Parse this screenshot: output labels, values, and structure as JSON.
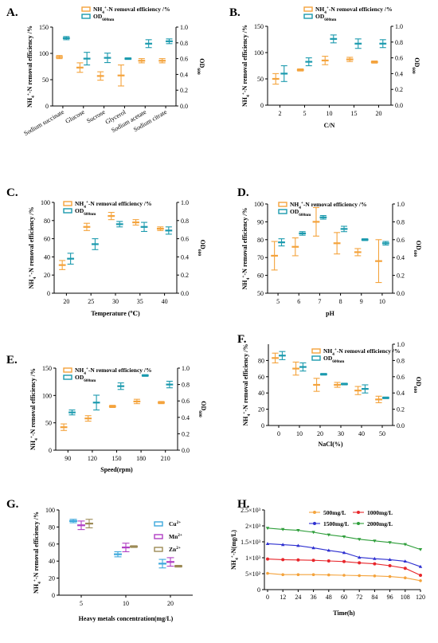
{
  "colors": {
    "removal": "#F4A33C",
    "od": "#1B9AAE",
    "cu": "#3DA8DC",
    "mn": "#B13FC4",
    "zn": "#9C8A55",
    "c500": "#F4A33C",
    "c1000": "#E8262B",
    "c1500": "#2D2FD0",
    "c2000": "#2E9E3A"
  },
  "chart_data": [
    {
      "panel": "A.",
      "type": "scatter",
      "categories": [
        "Sodium succinate",
        "Glucose",
        "Sucrose",
        "Glycerol",
        "Sodium acetate",
        "Sodium citrate"
      ],
      "ylabel": "NH4+-N removal efficiency /%",
      "y2label": "OD600",
      "ylim": [
        0,
        150
      ],
      "yticks": [
        0,
        50,
        100,
        150
      ],
      "y2lim": [
        0,
        1.0
      ],
      "y2ticks": [
        "0.0",
        "0.2",
        "0.4",
        "0.6",
        "0.8",
        "1.0"
      ],
      "legend": [
        "NH4+-N removal efficiency /%",
        "OD600nm"
      ],
      "series": [
        {
          "name": "NH4+-N removal efficiency /%",
          "axis": "left",
          "values": [
            93,
            73,
            57,
            58,
            86,
            86
          ],
          "errors": [
            3,
            9,
            8,
            20,
            4,
            4
          ]
        },
        {
          "name": "OD600nm",
          "axis": "right",
          "values": [
            0.86,
            0.6,
            0.61,
            0.6,
            0.79,
            0.82
          ],
          "errors": [
            0.02,
            0.08,
            0.06,
            0.01,
            0.05,
            0.03
          ]
        }
      ]
    },
    {
      "panel": "B.",
      "type": "scatter",
      "categories": [
        "2",
        "5",
        "10",
        "15",
        "20"
      ],
      "xlabel": "C/N",
      "ylabel": "NH4+-N removal efficiency /%",
      "y2label": "OD600",
      "ylim": [
        0,
        150
      ],
      "yticks": [
        0,
        50,
        100,
        150
      ],
      "y2lim": [
        0,
        1.0
      ],
      "y2ticks": [
        "0.0",
        "0.2",
        "0.4",
        "0.6",
        "0.8",
        "1.0"
      ],
      "legend": [
        "NH4+-N removal efficiency /%",
        "OD600nm"
      ],
      "series": [
        {
          "name": "NH4+-N removal efficiency /%",
          "axis": "left",
          "values": [
            50,
            67,
            85,
            87,
            82
          ],
          "errors": [
            10,
            2,
            8,
            4,
            2
          ]
        },
        {
          "name": "OD600nm",
          "axis": "right",
          "values": [
            0.4,
            0.55,
            0.84,
            0.78,
            0.78
          ],
          "errors": [
            0.1,
            0.05,
            0.05,
            0.06,
            0.05
          ]
        }
      ]
    },
    {
      "panel": "C.",
      "type": "scatter",
      "categories": [
        "20",
        "25",
        "30",
        "35",
        "40"
      ],
      "xlabel": "Temperature (℃)",
      "ylabel": "NH4+-N removal efficiency /%",
      "y2label": "OD600",
      "ylim": [
        0,
        100
      ],
      "yticks": [
        0,
        20,
        40,
        60,
        80,
        100
      ],
      "y2lim": [
        0,
        1.0
      ],
      "y2ticks": [
        "0.0",
        "0.2",
        "0.4",
        "0.6",
        "0.8",
        "1.0"
      ],
      "legend": [
        "NH4+-N removal efficiency /%",
        "OD600nm"
      ],
      "series": [
        {
          "name": "NH4+-N removal efficiency /%",
          "axis": "left",
          "values": [
            31,
            73,
            85,
            78,
            71
          ],
          "errors": [
            5,
            4,
            4,
            3,
            2
          ]
        },
        {
          "name": "OD600nm",
          "axis": "right",
          "values": [
            0.38,
            0.54,
            0.76,
            0.73,
            0.69
          ],
          "errors": [
            0.06,
            0.06,
            0.03,
            0.05,
            0.04
          ]
        }
      ]
    },
    {
      "panel": "D.",
      "type": "scatter",
      "categories": [
        "5",
        "6",
        "7",
        "8",
        "9",
        "10"
      ],
      "xlabel": "pH",
      "ylabel": "NH4+-N removal efficiency /%",
      "y2label": "OD600",
      "ylim": [
        50,
        100
      ],
      "yticks": [
        50,
        60,
        70,
        80,
        90,
        100
      ],
      "y2lim": [
        0,
        1.0
      ],
      "y2ticks": [
        "0.0",
        "0.2",
        "0.4",
        "0.6",
        "0.8",
        "1.0"
      ],
      "legend": [
        "NH4+-N removal efficiency /%",
        "OD600nm"
      ],
      "series": [
        {
          "name": "NH4+-N removal efficiency /%",
          "axis": "left",
          "values": [
            71,
            76,
            90,
            78,
            73,
            68
          ],
          "errors": [
            8,
            5,
            8,
            6,
            2,
            12
          ]
        },
        {
          "name": "OD600nm",
          "axis": "right",
          "values": [
            0.57,
            0.67,
            0.85,
            0.72,
            0.6,
            0.56
          ],
          "errors": [
            0.04,
            0.02,
            0.02,
            0.03,
            0.01,
            0.02
          ]
        }
      ]
    },
    {
      "panel": "E.",
      "type": "scatter",
      "categories": [
        "90",
        "120",
        "150",
        "180",
        "210"
      ],
      "xlabel": "Speed(rpm)",
      "ylabel": "NH4+-N removal efficiency /%",
      "y2label": "OD600",
      "ylim": [
        0,
        150
      ],
      "yticks": [
        0,
        50,
        100,
        150
      ],
      "y2lim": [
        0,
        1.0
      ],
      "y2ticks": [
        "0.0",
        "0.2",
        "0.4",
        "0.6",
        "0.8",
        "1.0"
      ],
      "legend": [
        "NH4+-N removal efficiency /%",
        "OD600nm"
      ],
      "series": [
        {
          "name": "NH4+-N removal efficiency /%",
          "axis": "left",
          "values": [
            42,
            58,
            80,
            89,
            87
          ],
          "errors": [
            6,
            5,
            2,
            4,
            2
          ]
        },
        {
          "name": "OD600nm",
          "axis": "right",
          "values": [
            0.46,
            0.58,
            0.78,
            0.91,
            0.8
          ],
          "errors": [
            0.03,
            0.09,
            0.04,
            0.01,
            0.04
          ]
        }
      ]
    },
    {
      "panel": "F.",
      "type": "scatter",
      "categories": [
        "0",
        "10",
        "20",
        "30",
        "40",
        "50"
      ],
      "xlabel": "NaCl(%)",
      "ylabel": "NH4+-N removal efficiency /%",
      "y2label": "OD600",
      "ylim": [
        0,
        100
      ],
      "yticks": [
        0,
        20,
        40,
        60,
        80
      ],
      "y2lim": [
        0,
        1.0
      ],
      "y2ticks": [
        "0.0",
        "0.2",
        "0.4",
        "0.6",
        "0.8",
        "1.0"
      ],
      "legend": [
        "NH4+-N removal efficiency /%",
        "OD600nm"
      ],
      "series": [
        {
          "name": "NH4+-N removal efficiency /%",
          "axis": "left",
          "values": [
            83,
            70,
            50,
            50,
            43,
            32
          ],
          "errors": [
            6,
            8,
            8,
            3,
            5,
            4
          ]
        },
        {
          "name": "OD600nm",
          "axis": "right",
          "values": [
            0.86,
            0.72,
            0.63,
            0.51,
            0.45,
            0.34
          ],
          "errors": [
            0.05,
            0.05,
            0.01,
            0.01,
            0.05,
            0.01
          ]
        }
      ]
    },
    {
      "panel": "G.",
      "type": "scatter",
      "categories": [
        "5",
        "10",
        "20"
      ],
      "xlabel": "Heavy metals concentration(mg/L)",
      "ylabel": "NH4+-N removal efficiency /%",
      "ylim": [
        0,
        100
      ],
      "yticks": [
        0,
        20,
        40,
        60,
        80,
        100
      ],
      "legend": [
        "Cu2+",
        "Mn2+",
        "Zn2+"
      ],
      "series": [
        {
          "name": "Cu2+",
          "values": [
            87,
            48,
            37
          ],
          "errors": [
            2,
            3,
            5
          ]
        },
        {
          "name": "Mn2+",
          "values": [
            82,
            56,
            39
          ],
          "errors": [
            5,
            5,
            5
          ]
        },
        {
          "name": "Zn2+",
          "values": [
            84,
            57,
            34
          ],
          "errors": [
            5,
            1,
            1
          ]
        }
      ]
    },
    {
      "panel": "H.",
      "type": "line",
      "x": [
        0,
        12,
        24,
        36,
        48,
        60,
        72,
        84,
        96,
        108,
        120
      ],
      "xticks": [
        "0",
        "12",
        "24",
        "36",
        "48",
        "60",
        "72",
        "84",
        "96",
        "108",
        "120"
      ],
      "xlabel": "Time(h)",
      "ylabel": "NH4+-N(mg/L)",
      "ylim": [
        0,
        2500
      ],
      "yticks": [
        "0",
        "5×10²",
        "1×10³",
        "1.5×10³",
        "2×10³",
        "2.5×10³"
      ],
      "legend": [
        "500mg/L",
        "1000mg/L",
        "1500mg/L",
        "2000mg/L"
      ],
      "series": [
        {
          "name": "500mg/L",
          "values": [
            510,
            470,
            470,
            470,
            460,
            450,
            440,
            430,
            410,
            370,
            280
          ]
        },
        {
          "name": "1000mg/L",
          "values": [
            960,
            940,
            930,
            920,
            900,
            880,
            840,
            810,
            750,
            670,
            450
          ]
        },
        {
          "name": "1500mg/L",
          "values": [
            1440,
            1410,
            1380,
            1310,
            1230,
            1160,
            1010,
            970,
            940,
            890,
            720
          ]
        },
        {
          "name": "2000mg/L",
          "values": [
            1930,
            1890,
            1860,
            1800,
            1720,
            1660,
            1580,
            1530,
            1480,
            1420,
            1260
          ]
        }
      ]
    }
  ]
}
